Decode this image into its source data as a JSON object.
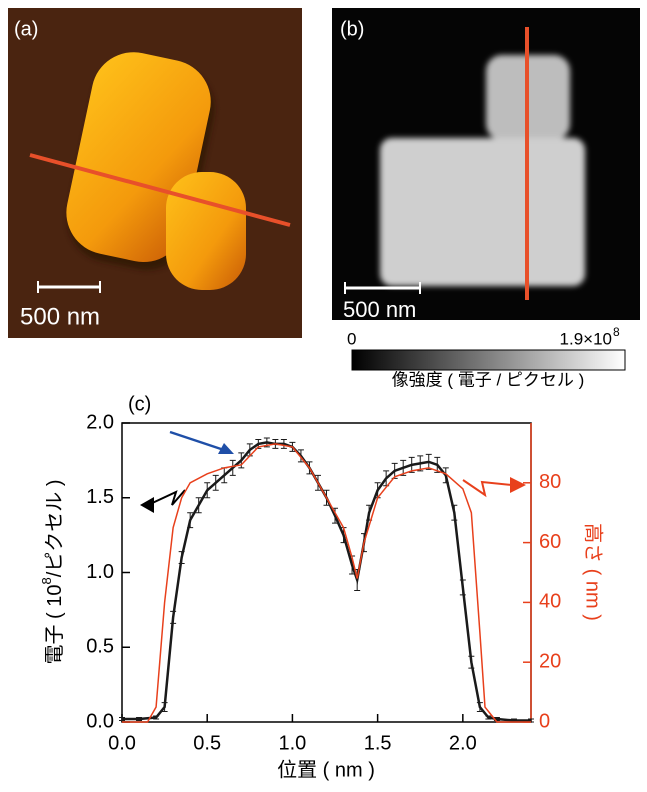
{
  "panels": {
    "a": {
      "label": "(a)",
      "scale_bar": "500 nm"
    },
    "b": {
      "label": "(b)",
      "scale_bar": "500 nm",
      "colorbar_min": "0",
      "colorbar_max": "1.9×10",
      "colorbar_max_exp": "8",
      "colorbar_label": "像強度 ( 電子 / ピクセル )"
    }
  },
  "chart_data": {
    "type": "line",
    "panel_label": "(c)",
    "x_label": "位置 ( nm )",
    "y_label": [
      "電子 ( 10",
      "8",
      "/ピクセル )"
    ],
    "y2_label": "高さ ( nm )",
    "xlim": [
      0,
      2.4
    ],
    "xticks": [
      {
        "value": 0,
        "label": "0.0"
      },
      0.5,
      {
        "value": 1,
        "label": "1.0"
      },
      1.5,
      {
        "value": 2,
        "label": "2.0"
      }
    ],
    "ylim": [
      0,
      2
    ],
    "yticks": [
      {
        "value": 0,
        "label": "0.0"
      },
      0.5,
      {
        "value": 1,
        "label": "1.0"
      },
      1.5,
      {
        "value": 2,
        "label": "2.0"
      }
    ],
    "y2lim": [
      0,
      100
    ],
    "y2ticks": [
      0,
      20,
      40,
      60,
      80
    ],
    "grid": false,
    "series": [
      {
        "color": "#1a1a1a",
        "x": [
          0,
          0.1,
          0.2,
          0.25,
          0.3,
          0.35,
          0.4,
          0.45,
          0.5,
          0.55,
          0.6,
          0.65,
          0.7,
          0.75,
          0.8,
          0.85,
          0.9,
          0.95,
          1.0,
          1.05,
          1.1,
          1.15,
          1.2,
          1.25,
          1.3,
          1.35,
          1.38,
          1.42,
          1.45,
          1.5,
          1.55,
          1.6,
          1.65,
          1.7,
          1.75,
          1.8,
          1.85,
          1.9,
          1.95,
          2.0,
          2.05,
          2.1,
          2.15,
          2.2,
          2.3,
          2.4
        ],
        "values": [
          0.02,
          0.02,
          0.03,
          0.1,
          0.7,
          1.1,
          1.35,
          1.45,
          1.55,
          1.6,
          1.65,
          1.7,
          1.75,
          1.82,
          1.86,
          1.87,
          1.86,
          1.86,
          1.84,
          1.78,
          1.7,
          1.6,
          1.5,
          1.38,
          1.25,
          1.05,
          0.95,
          1.2,
          1.4,
          1.55,
          1.63,
          1.68,
          1.7,
          1.72,
          1.73,
          1.74,
          1.72,
          1.65,
          1.4,
          0.9,
          0.4,
          0.1,
          0.03,
          0.02,
          0.01,
          0.01
        ],
        "errors": [
          0.01,
          0.01,
          0.01,
          0.03,
          0.04,
          0.04,
          0.05,
          0.05,
          0.05,
          0.05,
          0.05,
          0.05,
          0.05,
          0.04,
          0.03,
          0.03,
          0.03,
          0.03,
          0.03,
          0.04,
          0.04,
          0.05,
          0.05,
          0.05,
          0.05,
          0.06,
          0.07,
          0.06,
          0.05,
          0.05,
          0.05,
          0.05,
          0.05,
          0.05,
          0.05,
          0.05,
          0.05,
          0.05,
          0.05,
          0.05,
          0.04,
          0.03,
          0.01,
          0.01,
          0.01,
          0.01
        ]
      },
      {
        "color": "#e8401c",
        "axis": "y2",
        "x": [
          0,
          0.15,
          0.2,
          0.25,
          0.3,
          0.35,
          0.4,
          0.5,
          0.6,
          0.7,
          0.8,
          0.9,
          1.0,
          1.1,
          1.2,
          1.3,
          1.35,
          1.38,
          1.42,
          1.5,
          1.6,
          1.7,
          1.8,
          1.9,
          2.0,
          2.05,
          2.1,
          2.13,
          2.2,
          2.4
        ],
        "values": [
          0,
          0,
          5,
          40,
          65,
          75,
          80,
          83,
          85,
          86,
          92,
          93,
          92,
          85,
          75,
          65,
          55,
          48,
          60,
          75,
          82,
          84,
          85,
          83,
          78,
          70,
          30,
          5,
          0,
          0
        ]
      }
    ]
  }
}
